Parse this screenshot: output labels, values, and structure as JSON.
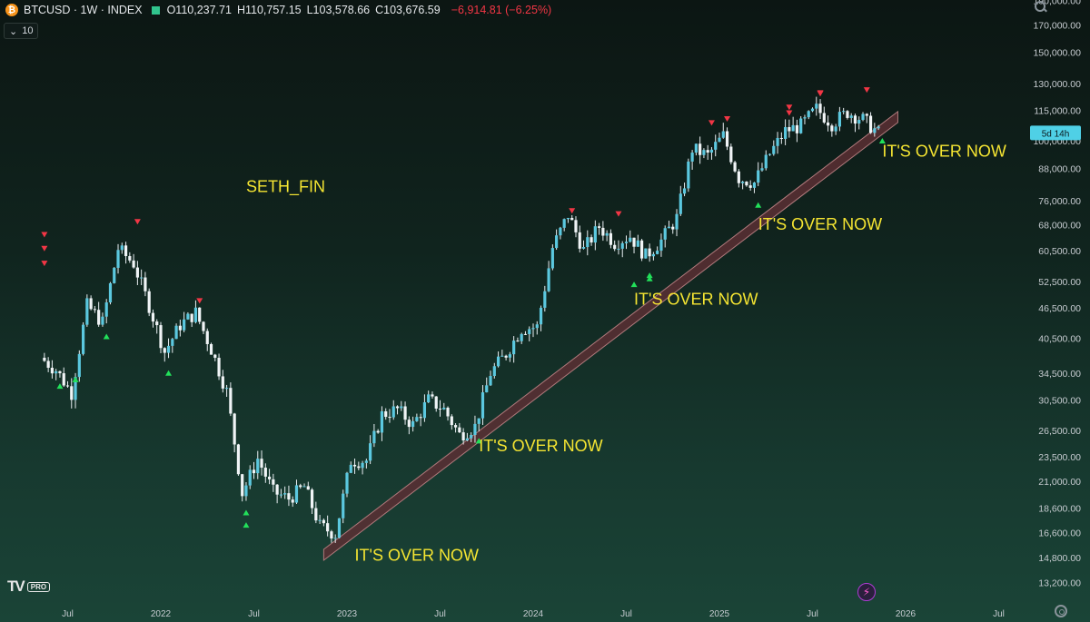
{
  "header": {
    "symbol": "BTCUSD",
    "interval": "1W",
    "exchange": "INDEX",
    "open": "O110,237.71",
    "high": "H110,757.15",
    "low": "L103,578.66",
    "close": "C103,676.59",
    "change": "−6,914.81 (−6.25%)"
  },
  "indicator_badge": "10",
  "branding": {
    "logo": "TV",
    "tier": "PRO"
  },
  "colors": {
    "candle": "#5bc8df",
    "wick": "#e8eef2",
    "up_marker": "#22e05a",
    "down_marker": "#f23645",
    "annotation": "#f5e532",
    "band_fill": "#5a2f34",
    "band_edge": "#b07a7c",
    "price_tag": "#4fd0e6"
  },
  "chart_data": {
    "type": "candlestick",
    "x_tick_labels": [
      "Jul",
      "2022",
      "Jul",
      "2023",
      "Jul",
      "2024",
      "Jul",
      "2025",
      "Jul",
      "2026",
      "Jul"
    ],
    "y_scale": "log",
    "y_tick_labels": [
      "190,000.00",
      "170,000.00",
      "150,000.00",
      "130,000.00",
      "115,000.00",
      "100,000.00",
      "88,000.00",
      "76,000.00",
      "68,000.00",
      "60,500.00",
      "52,500.00",
      "46,500.00",
      "40,500.00",
      "34,500.00",
      "30,500.00",
      "26,500.00",
      "23,500.00",
      "21,000.00",
      "18,600.00",
      "16,600.00",
      "14,800.00",
      "13,200.00"
    ],
    "ylim": [
      12600,
      195000
    ],
    "countdown_label": "5d 14h",
    "price_path": [
      {
        "x": "2021-05",
        "close": 37000
      },
      {
        "x": "2021-06",
        "close": 35000
      },
      {
        "x": "2021-07",
        "close": 31500
      },
      {
        "x": "2021-08",
        "close": 47000
      },
      {
        "x": "2021-09",
        "close": 43500
      },
      {
        "x": "2021-10",
        "close": 61000
      },
      {
        "x": "2021-11",
        "close": 57000
      },
      {
        "x": "2021-12",
        "close": 47000
      },
      {
        "x": "2022-01",
        "close": 38000
      },
      {
        "x": "2022-02",
        "close": 43000
      },
      {
        "x": "2022-03",
        "close": 45500
      },
      {
        "x": "2022-04",
        "close": 38500
      },
      {
        "x": "2022-05",
        "close": 31700
      },
      {
        "x": "2022-06",
        "close": 19900
      },
      {
        "x": "2022-07",
        "close": 23300
      },
      {
        "x": "2022-08",
        "close": 20000
      },
      {
        "x": "2022-09",
        "close": 19400
      },
      {
        "x": "2022-10",
        "close": 20500
      },
      {
        "x": "2022-11",
        "close": 17100
      },
      {
        "x": "2022-12",
        "close": 16500
      },
      {
        "x": "2023-01",
        "close": 23100
      },
      {
        "x": "2023-02",
        "close": 23100
      },
      {
        "x": "2023-03",
        "close": 28500
      },
      {
        "x": "2023-04",
        "close": 29200
      },
      {
        "x": "2023-05",
        "close": 27200
      },
      {
        "x": "2023-06",
        "close": 30500
      },
      {
        "x": "2023-07",
        "close": 29200
      },
      {
        "x": "2023-08",
        "close": 26000
      },
      {
        "x": "2023-09",
        "close": 27000
      },
      {
        "x": "2023-10",
        "close": 34500
      },
      {
        "x": "2023-11",
        "close": 37700
      },
      {
        "x": "2023-12",
        "close": 42300
      },
      {
        "x": "2024-01",
        "close": 42600
      },
      {
        "x": "2024-02",
        "close": 61200
      },
      {
        "x": "2024-03",
        "close": 71300
      },
      {
        "x": "2024-04",
        "close": 60600
      },
      {
        "x": "2024-05",
        "close": 67500
      },
      {
        "x": "2024-06",
        "close": 62700
      },
      {
        "x": "2024-07",
        "close": 64600
      },
      {
        "x": "2024-08",
        "close": 59000
      },
      {
        "x": "2024-09",
        "close": 63300
      },
      {
        "x": "2024-10",
        "close": 70200
      },
      {
        "x": "2024-11",
        "close": 96400
      },
      {
        "x": "2024-12",
        "close": 93400
      },
      {
        "x": "2025-01",
        "close": 102400
      },
      {
        "x": "2025-02",
        "close": 84300
      },
      {
        "x": "2025-03",
        "close": 82500
      },
      {
        "x": "2025-04",
        "close": 94200
      },
      {
        "x": "2025-05",
        "close": 104600
      },
      {
        "x": "2025-06",
        "close": 107100
      },
      {
        "x": "2025-07",
        "close": 115700
      },
      {
        "x": "2025-08",
        "close": 108200
      },
      {
        "x": "2025-09",
        "close": 114000
      },
      {
        "x": "2025-10",
        "close": 110200
      },
      {
        "x": "2025-11",
        "close": 103676
      }
    ],
    "down_markers": [
      {
        "x": "2021-05",
        "y": 57000
      },
      {
        "x": "2021-05",
        "y": 61000
      },
      {
        "x": "2021-05",
        "y": 65000
      },
      {
        "x": "2021-11",
        "y": 69000
      },
      {
        "x": "2022-03",
        "y": 48000
      },
      {
        "x": "2024-03",
        "y": 72500
      },
      {
        "x": "2024-06",
        "y": 71500
      },
      {
        "x": "2024-12",
        "y": 108500
      },
      {
        "x": "2025-01",
        "y": 110500
      },
      {
        "x": "2025-05",
        "y": 113500
      },
      {
        "x": "2025-05",
        "y": 116500
      },
      {
        "x": "2025-07",
        "y": 124000
      },
      {
        "x": "2025-07",
        "y": 124500
      },
      {
        "x": "2025-10",
        "y": 126200
      }
    ],
    "up_markers": [
      {
        "x": "2021-06",
        "y": 32500
      },
      {
        "x": "2021-07",
        "y": 33500
      },
      {
        "x": "2021-09",
        "y": 40800
      },
      {
        "x": "2022-01",
        "y": 34500
      },
      {
        "x": "2022-06",
        "y": 18200
      },
      {
        "x": "2022-06",
        "y": 17200
      },
      {
        "x": "2023-09",
        "y": 25300
      },
      {
        "x": "2024-07",
        "y": 51800
      },
      {
        "x": "2024-08",
        "y": 54000
      },
      {
        "x": "2024-08",
        "y": 53200
      },
      {
        "x": "2025-03",
        "y": 74500
      },
      {
        "x": "2025-11",
        "y": 100000
      }
    ],
    "trend_band": {
      "from": {
        "x": "2022-11",
        "y": 15000
      },
      "to": {
        "x": "2025-12",
        "y": 111500
      }
    },
    "annotations": [
      {
        "text": "SETH_FIN",
        "x": "2022-06",
        "y": 79000
      },
      {
        "text": "IT'S OVER NOW",
        "x": "2023-01",
        "y": 14600
      },
      {
        "text": "IT'S OVER NOW",
        "x": "2023-09",
        "y": 24100
      },
      {
        "text": "IT'S OVER NOW",
        "x": "2024-07",
        "y": 47200
      },
      {
        "text": "IT'S OVER NOW",
        "x": "2025-03",
        "y": 66500
      },
      {
        "text": "IT'S OVER NOW",
        "x": "2025-11",
        "y": 93000
      }
    ]
  }
}
